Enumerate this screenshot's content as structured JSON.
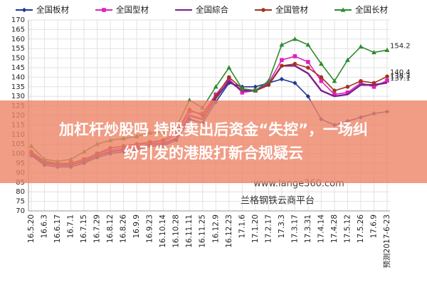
{
  "chart_data": {
    "type": "line",
    "categories": [
      "16.5.20",
      "16.6.3",
      "16.6.17",
      "16.7.1",
      "16.7.15",
      "16.7.29",
      "16.8.12",
      "16.8.26",
      "16.9.9",
      "16.9.23",
      "16.10.14",
      "16.10.28",
      "16.11.11",
      "16.11.25",
      "16.12.9",
      "16.12.23",
      "17.1.6",
      "17.1.20",
      "17.2.17",
      "17.3.3",
      "17.3.17",
      "17.3.31",
      "17.4.14",
      "17.4.28",
      "17.5.12",
      "17.5.26",
      "17.6.9",
      "预测2017-6-23"
    ],
    "series": [
      {
        "name": "全国板材",
        "color": "#1f3a93",
        "marker": "diamond",
        "values": [
          99,
          94,
          93,
          93,
          95,
          98,
          100,
          101,
          102,
          104,
          104,
          107,
          118,
          116,
          127,
          137,
          135,
          135,
          137,
          139,
          137,
          130,
          118,
          115,
          117,
          119,
          121,
          122
        ]
      },
      {
        "name": "全国型材",
        "color": "#e020c0",
        "marker": "square",
        "values": [
          100,
          96,
          94,
          95,
          97,
          100,
          102,
          103,
          104,
          106,
          106,
          110,
          122,
          121,
          131,
          139,
          132,
          133,
          137,
          149,
          151,
          148,
          138,
          131,
          132,
          137,
          135,
          138.3
        ]
      },
      {
        "name": "全国綜合",
        "color": "#7b1f8c",
        "marker": "none",
        "values": [
          100,
          95,
          94,
          94,
          96,
          99,
          101,
          102,
          103,
          105,
          105,
          108,
          120,
          118,
          129,
          138,
          133,
          133,
          136,
          146,
          146,
          142,
          133,
          130,
          131,
          136,
          136,
          137.1
        ]
      },
      {
        "name": "全国管材",
        "color": "#a0341c",
        "marker": "circle",
        "values": [
          101,
          96,
          95,
          95,
          97,
          100,
          103,
          104,
          105,
          106,
          107,
          111,
          123,
          120,
          130,
          140,
          134,
          133,
          136,
          146,
          147,
          145,
          140,
          133,
          135,
          138,
          137,
          140.4
        ]
      },
      {
        "name": "全国长材",
        "color": "#2e8b2e",
        "marker": "triangle",
        "values": [
          104,
          97,
          96,
          97,
          101,
          105,
          107,
          108,
          109,
          111,
          111,
          114,
          128,
          124,
          135,
          145,
          134,
          133,
          138,
          157,
          160,
          157,
          147,
          138,
          149,
          156,
          153,
          154.2
        ]
      }
    ],
    "ylim": [
      70,
      170
    ],
    "yticks": [
      70,
      75,
      80,
      85,
      90,
      95,
      100,
      105,
      110,
      115,
      120,
      125,
      130,
      135,
      140,
      145,
      150,
      155,
      160,
      165,
      170
    ],
    "grid": true,
    "legend": "top",
    "annotations": [
      "www.lange360.com",
      "兰格钢铁云商平台"
    ]
  },
  "overlay": {
    "headline": [
      "加杠杆炒股吗 持股卖出后资金“失控”，一场纠",
      "纷引发的港股打新合规疑云"
    ]
  }
}
